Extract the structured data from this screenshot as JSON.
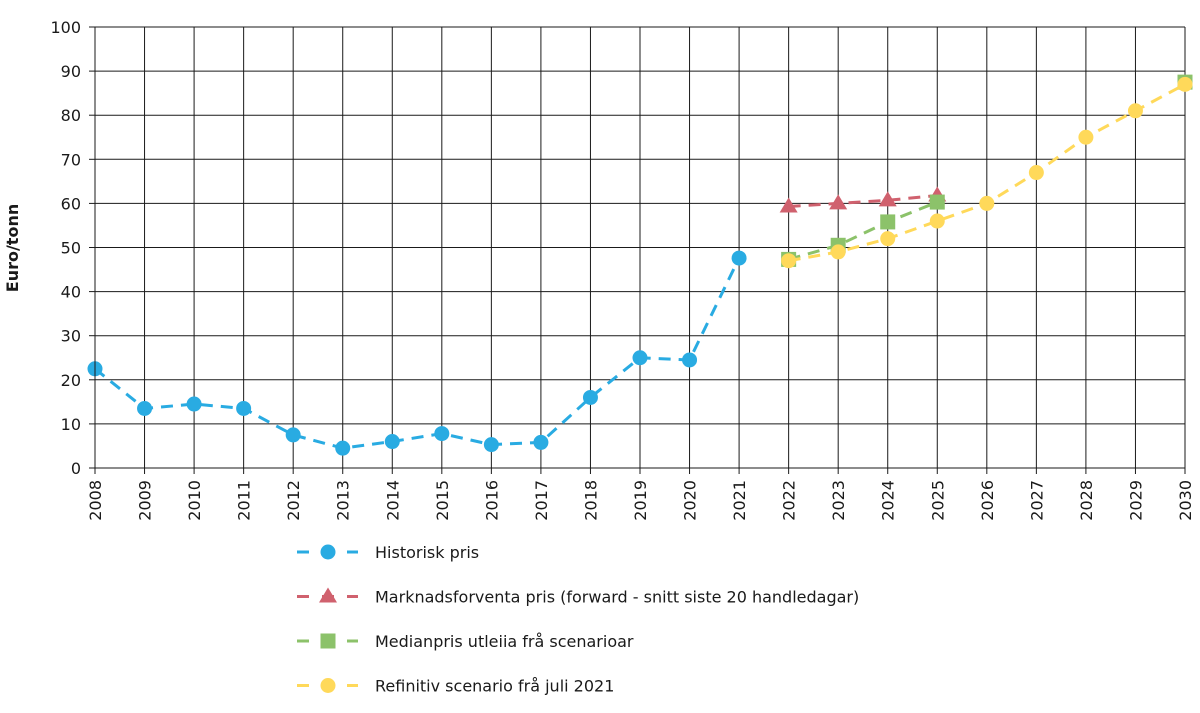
{
  "chart_data": {
    "type": "line",
    "y_label": "Euro/tonn",
    "x": [
      2008,
      2009,
      2010,
      2011,
      2012,
      2013,
      2014,
      2015,
      2016,
      2017,
      2018,
      2019,
      2020,
      2021,
      2022,
      2023,
      2024,
      2025,
      2026,
      2027,
      2028,
      2029,
      2030
    ],
    "xlim": [
      2008,
      2030
    ],
    "xticks": [
      2008,
      2009,
      2010,
      2011,
      2012,
      2013,
      2014,
      2015,
      2016,
      2017,
      2018,
      2019,
      2020,
      2021,
      2022,
      2023,
      2024,
      2025,
      2026,
      2027,
      2028,
      2029,
      2030
    ],
    "ylim": [
      0,
      100
    ],
    "yticks": [
      0,
      10,
      20,
      30,
      40,
      50,
      60,
      70,
      80,
      90,
      100
    ],
    "grid": true,
    "legend": "bottom",
    "series": [
      {
        "name": "Historisk pris",
        "color": "#29abe2",
        "marker": "circle",
        "values": [
          22.5,
          13.5,
          14.5,
          13.5,
          7.5,
          4.5,
          6,
          7.8,
          5.3,
          5.8,
          16,
          25,
          24.5,
          47.6,
          null,
          null,
          null,
          null,
          null,
          null,
          null,
          null,
          null
        ]
      },
      {
        "name": "Marknadsforventa pris (forward - snitt siste 20 handledagar)",
        "color": "#d0616e",
        "marker": "triangle",
        "values": [
          null,
          null,
          null,
          null,
          null,
          null,
          null,
          null,
          null,
          null,
          null,
          null,
          null,
          null,
          59.3,
          60,
          60.7,
          61.8,
          null,
          null,
          null,
          null,
          null
        ]
      },
      {
        "name": "Medianpris utleiia frå scenarioar",
        "color": "#8cc26a",
        "marker": "square",
        "values": [
          null,
          null,
          null,
          null,
          null,
          null,
          null,
          null,
          null,
          null,
          null,
          null,
          null,
          null,
          47.3,
          50.5,
          55.8,
          60.3,
          null,
          null,
          null,
          null,
          87.5
        ]
      },
      {
        "name": "Refinitiv scenario frå juli 2021",
        "color": "#ffd95a",
        "marker": "circle",
        "values": [
          null,
          null,
          null,
          null,
          null,
          null,
          null,
          null,
          null,
          null,
          null,
          null,
          null,
          null,
          47,
          49,
          52,
          56,
          60,
          67,
          75,
          81,
          87
        ]
      }
    ]
  }
}
